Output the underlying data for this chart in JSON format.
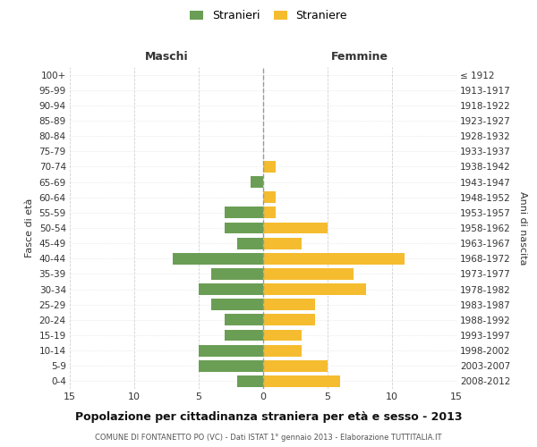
{
  "age_groups": [
    "100+",
    "95-99",
    "90-94",
    "85-89",
    "80-84",
    "75-79",
    "70-74",
    "65-69",
    "60-64",
    "55-59",
    "50-54",
    "45-49",
    "40-44",
    "35-39",
    "30-34",
    "25-29",
    "20-24",
    "15-19",
    "10-14",
    "5-9",
    "0-4"
  ],
  "birth_years": [
    "≤ 1912",
    "1913-1917",
    "1918-1922",
    "1923-1927",
    "1928-1932",
    "1933-1937",
    "1938-1942",
    "1943-1947",
    "1948-1952",
    "1953-1957",
    "1958-1962",
    "1963-1967",
    "1968-1972",
    "1973-1977",
    "1978-1982",
    "1983-1987",
    "1988-1992",
    "1993-1997",
    "1998-2002",
    "2003-2007",
    "2008-2012"
  ],
  "males": [
    0,
    0,
    0,
    0,
    0,
    0,
    0,
    1,
    0,
    3,
    3,
    2,
    7,
    4,
    5,
    4,
    3,
    3,
    5,
    5,
    2
  ],
  "females": [
    0,
    0,
    0,
    0,
    0,
    0,
    1,
    0,
    1,
    1,
    5,
    3,
    11,
    7,
    8,
    4,
    4,
    3,
    3,
    5,
    6
  ],
  "male_color": "#6b9e55",
  "female_color": "#f5bc2f",
  "male_label": "Stranieri",
  "female_label": "Straniere",
  "title": "Popolazione per cittadinanza straniera per età e sesso - 2013",
  "subtitle": "COMUNE DI FONTANETTO PO (VC) - Dati ISTAT 1° gennaio 2013 - Elaborazione TUTTITALIA.IT",
  "xlabel_left": "Maschi",
  "xlabel_right": "Femmine",
  "ylabel_left": "Fasce di età",
  "ylabel_right": "Anni di nascita",
  "xlim": 15,
  "background_color": "#ffffff",
  "grid_color": "#cccccc"
}
